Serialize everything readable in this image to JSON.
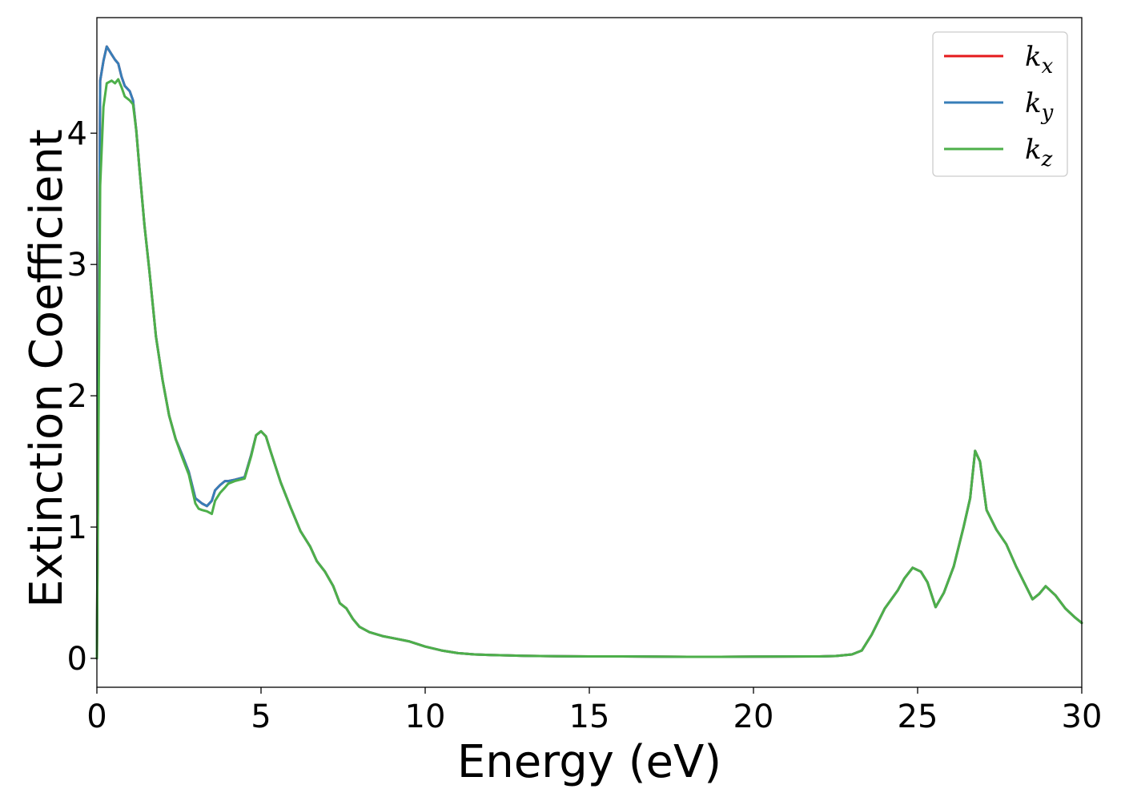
{
  "chart_data": {
    "type": "line",
    "title": "",
    "xlabel": "Energy (eV)",
    "ylabel": "Extinction Coefficient",
    "xlim": [
      0,
      30
    ],
    "ylim": [
      -0.22,
      4.88
    ],
    "xticks": [
      0,
      5,
      10,
      15,
      20,
      25,
      30
    ],
    "yticks": [
      0,
      1,
      2,
      3,
      4
    ],
    "grid": false,
    "legend_placement": "top-right",
    "legend": [
      {
        "base": "k",
        "sub": "x",
        "color": "#e41a1c"
      },
      {
        "base": "k",
        "sub": "y",
        "color": "#377eb8"
      },
      {
        "base": "k",
        "sub": "z",
        "color": "#4daf4a"
      }
    ],
    "series": [
      {
        "color": "#e41a1c",
        "x": [
          0,
          0.1,
          0.2,
          0.3,
          0.45,
          0.55,
          0.65,
          0.75,
          0.85,
          1.0,
          1.1,
          1.2,
          1.3,
          1.45,
          1.6,
          1.8,
          2.0,
          2.2,
          2.4,
          2.6,
          2.8,
          3.0,
          3.1,
          3.2,
          3.35,
          3.5,
          3.6,
          3.75,
          3.9,
          4.0,
          4.2,
          4.5,
          4.7,
          4.85,
          5.0,
          5.15,
          5.3,
          5.6,
          5.9,
          6.2,
          6.5,
          6.7,
          6.95,
          7.2,
          7.4,
          7.6,
          7.8,
          8.0,
          8.3,
          8.7,
          9.1,
          9.5,
          10.0,
          10.5,
          11.0,
          11.5,
          12.0,
          13.0,
          14.0,
          15.0,
          16.0,
          17.0,
          18.0,
          19.0,
          20.0,
          21.0,
          22.0,
          22.5,
          23.0,
          23.3,
          23.6,
          24.0,
          24.4,
          24.6,
          24.85,
          25.1,
          25.3,
          25.55,
          25.8,
          26.1,
          26.4,
          26.6,
          26.75,
          26.9,
          27.1,
          27.4,
          27.7,
          28.0,
          28.3,
          28.5,
          28.7,
          28.9,
          29.2,
          29.5,
          29.8,
          30.0
        ],
        "y": [
          0.0,
          4.4,
          4.55,
          4.66,
          4.6,
          4.56,
          4.53,
          4.43,
          4.36,
          4.32,
          4.25,
          4.02,
          3.72,
          3.3,
          2.95,
          2.45,
          2.12,
          1.85,
          1.67,
          1.55,
          1.42,
          1.22,
          1.2,
          1.18,
          1.16,
          1.2,
          1.28,
          1.32,
          1.35,
          1.35,
          1.36,
          1.38,
          1.55,
          1.7,
          1.73,
          1.69,
          1.57,
          1.34,
          1.15,
          0.97,
          0.85,
          0.74,
          0.66,
          0.55,
          0.42,
          0.38,
          0.3,
          0.24,
          0.2,
          0.17,
          0.15,
          0.13,
          0.09,
          0.06,
          0.04,
          0.03,
          0.025,
          0.02,
          0.017,
          0.015,
          0.015,
          0.013,
          0.012,
          0.012,
          0.013,
          0.014,
          0.015,
          0.018,
          0.03,
          0.06,
          0.18,
          0.38,
          0.52,
          0.61,
          0.69,
          0.66,
          0.58,
          0.39,
          0.5,
          0.7,
          1.0,
          1.22,
          1.58,
          1.5,
          1.13,
          0.98,
          0.87,
          0.7,
          0.55,
          0.45,
          0.49,
          0.55,
          0.48,
          0.38,
          0.31,
          0.27
        ]
      },
      {
        "color": "#377eb8",
        "x": [
          0,
          0.1,
          0.2,
          0.3,
          0.45,
          0.55,
          0.65,
          0.75,
          0.85,
          1.0,
          1.1,
          1.2,
          1.3,
          1.45,
          1.6,
          1.8,
          2.0,
          2.2,
          2.4,
          2.6,
          2.8,
          3.0,
          3.1,
          3.2,
          3.35,
          3.5,
          3.6,
          3.75,
          3.9,
          4.0,
          4.2,
          4.5,
          4.7,
          4.85,
          5.0,
          5.15,
          5.3,
          5.6,
          5.9,
          6.2,
          6.5,
          6.7,
          6.95,
          7.2,
          7.4,
          7.6,
          7.8,
          8.0,
          8.3,
          8.7,
          9.1,
          9.5,
          10.0,
          10.5,
          11.0,
          11.5,
          12.0,
          13.0,
          14.0,
          15.0,
          16.0,
          17.0,
          18.0,
          19.0,
          20.0,
          21.0,
          22.0,
          22.5,
          23.0,
          23.3,
          23.6,
          24.0,
          24.4,
          24.6,
          24.85,
          25.1,
          25.3,
          25.55,
          25.8,
          26.1,
          26.4,
          26.6,
          26.75,
          26.9,
          27.1,
          27.4,
          27.7,
          28.0,
          28.3,
          28.5,
          28.7,
          28.9,
          29.2,
          29.5,
          29.8,
          30.0
        ],
        "y": [
          0.0,
          4.4,
          4.55,
          4.66,
          4.6,
          4.56,
          4.53,
          4.43,
          4.36,
          4.32,
          4.25,
          4.02,
          3.72,
          3.3,
          2.95,
          2.45,
          2.12,
          1.85,
          1.67,
          1.55,
          1.42,
          1.22,
          1.2,
          1.18,
          1.16,
          1.2,
          1.28,
          1.32,
          1.35,
          1.35,
          1.36,
          1.38,
          1.55,
          1.7,
          1.73,
          1.69,
          1.57,
          1.34,
          1.15,
          0.97,
          0.85,
          0.74,
          0.66,
          0.55,
          0.42,
          0.38,
          0.3,
          0.24,
          0.2,
          0.17,
          0.15,
          0.13,
          0.09,
          0.06,
          0.04,
          0.03,
          0.025,
          0.02,
          0.017,
          0.015,
          0.015,
          0.013,
          0.012,
          0.012,
          0.013,
          0.014,
          0.015,
          0.018,
          0.03,
          0.06,
          0.18,
          0.38,
          0.52,
          0.61,
          0.69,
          0.66,
          0.58,
          0.39,
          0.5,
          0.7,
          1.0,
          1.22,
          1.58,
          1.5,
          1.13,
          0.98,
          0.87,
          0.7,
          0.55,
          0.45,
          0.49,
          0.55,
          0.48,
          0.38,
          0.31,
          0.27
        ]
      },
      {
        "color": "#4daf4a",
        "x": [
          0,
          0.1,
          0.2,
          0.3,
          0.45,
          0.55,
          0.65,
          0.75,
          0.85,
          1.0,
          1.1,
          1.2,
          1.3,
          1.45,
          1.6,
          1.8,
          2.0,
          2.2,
          2.4,
          2.6,
          2.8,
          3.0,
          3.1,
          3.2,
          3.35,
          3.5,
          3.6,
          3.75,
          3.9,
          4.0,
          4.2,
          4.5,
          4.7,
          4.85,
          5.0,
          5.15,
          5.3,
          5.6,
          5.9,
          6.2,
          6.5,
          6.7,
          6.95,
          7.2,
          7.4,
          7.6,
          7.8,
          8.0,
          8.3,
          8.7,
          9.1,
          9.5,
          10.0,
          10.5,
          11.0,
          11.5,
          12.0,
          13.0,
          14.0,
          15.0,
          16.0,
          17.0,
          18.0,
          19.0,
          20.0,
          21.0,
          22.0,
          22.5,
          23.0,
          23.3,
          23.6,
          24.0,
          24.4,
          24.6,
          24.85,
          25.1,
          25.3,
          25.55,
          25.8,
          26.1,
          26.4,
          26.6,
          26.75,
          26.9,
          27.1,
          27.4,
          27.7,
          28.0,
          28.3,
          28.5,
          28.7,
          28.9,
          29.2,
          29.5,
          29.8,
          30.0
        ],
        "y": [
          0.0,
          3.6,
          4.2,
          4.38,
          4.4,
          4.38,
          4.41,
          4.35,
          4.28,
          4.25,
          4.22,
          4.02,
          3.72,
          3.3,
          2.95,
          2.45,
          2.12,
          1.85,
          1.67,
          1.53,
          1.4,
          1.18,
          1.14,
          1.13,
          1.12,
          1.1,
          1.2,
          1.26,
          1.3,
          1.33,
          1.35,
          1.37,
          1.54,
          1.7,
          1.73,
          1.69,
          1.57,
          1.34,
          1.15,
          0.97,
          0.85,
          0.74,
          0.66,
          0.55,
          0.42,
          0.38,
          0.3,
          0.24,
          0.2,
          0.17,
          0.15,
          0.13,
          0.09,
          0.06,
          0.04,
          0.03,
          0.025,
          0.02,
          0.017,
          0.015,
          0.015,
          0.013,
          0.012,
          0.012,
          0.013,
          0.014,
          0.015,
          0.018,
          0.03,
          0.06,
          0.18,
          0.38,
          0.52,
          0.61,
          0.69,
          0.66,
          0.58,
          0.39,
          0.5,
          0.7,
          1.0,
          1.22,
          1.58,
          1.5,
          1.13,
          0.98,
          0.87,
          0.7,
          0.55,
          0.45,
          0.49,
          0.55,
          0.48,
          0.38,
          0.31,
          0.27
        ]
      }
    ]
  }
}
